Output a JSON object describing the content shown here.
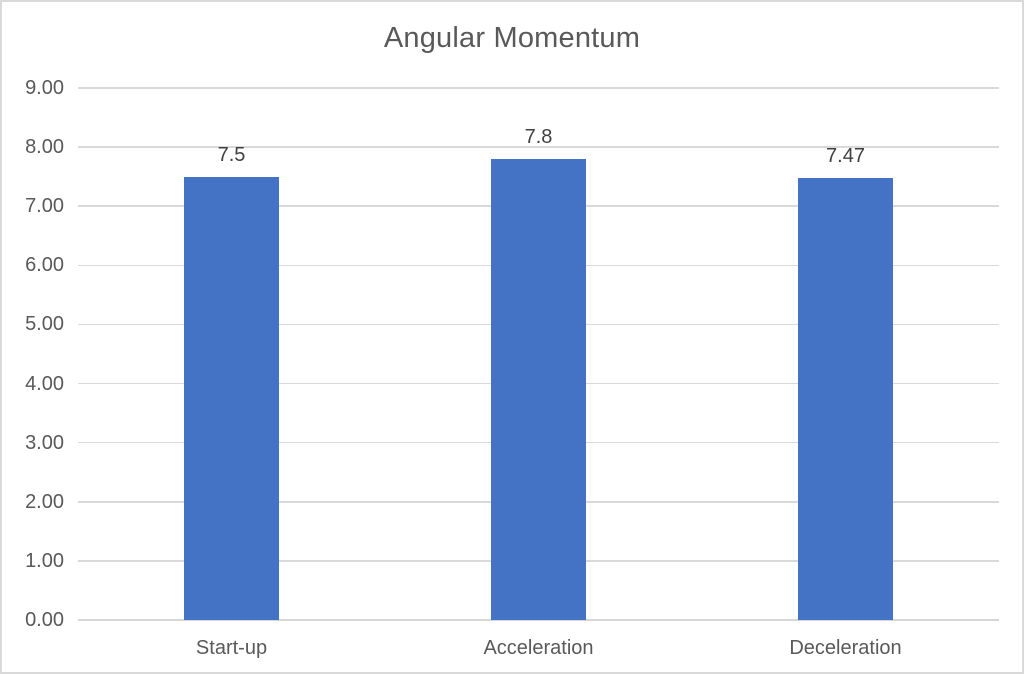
{
  "chart_data": {
    "type": "bar",
    "title": "Angular Momentum",
    "categories": [
      "Start-up",
      "Acceleration",
      "Deceleration"
    ],
    "values": [
      7.5,
      7.8,
      7.47
    ],
    "data_labels": [
      "7.5",
      "7.8",
      "7.47"
    ],
    "yticks": [
      "0.00",
      "1.00",
      "2.00",
      "3.00",
      "4.00",
      "5.00",
      "6.00",
      "7.00",
      "8.00",
      "9.00"
    ],
    "ylim": [
      0,
      9
    ],
    "xlabel": "",
    "ylabel": "",
    "grid": "horizontal",
    "legend": "none",
    "colors": {
      "bar": "#4472C4",
      "title": "#595959",
      "axis_text": "#595959",
      "data_label": "#404040",
      "gridline": "#D9D9D9",
      "axis_line": "#D6D6D6",
      "chart_border": "#D9D9D9",
      "background": "#FFFFFF"
    }
  }
}
